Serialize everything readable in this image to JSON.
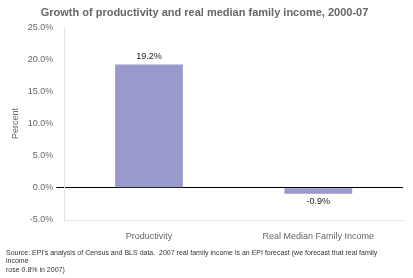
{
  "chart_data": {
    "type": "bar",
    "title": "Growth of productivity and real median family income, 2000-07",
    "categories": [
      "Productivity",
      "Real Median Family Income"
    ],
    "values": [
      19.2,
      -0.9
    ],
    "value_labels": [
      "19.2%",
      "-0.9%"
    ],
    "data_labels": true,
    "color": "#9999cc",
    "ylabel": "Percent",
    "ylim": [
      -5.0,
      25.0
    ],
    "yticks": [
      {
        "value": -5.0,
        "label": "-5.0%"
      },
      {
        "value": 0.0,
        "label": "0.0%"
      },
      {
        "value": 5.0,
        "label": "5.0%"
      },
      {
        "value": 10.0,
        "label": "10.0%"
      },
      {
        "value": 15.0,
        "label": "15.0%"
      },
      {
        "value": 20.0,
        "label": "20.0%"
      },
      {
        "value": 25.0,
        "label": "25.0%"
      }
    ],
    "grid": false,
    "annotations": [
      "Source: EPI's analysis of Census and BLS data.  2007 real family income is an EPI forecast (we forecast that real family income\nrose 0.8% in 2007)"
    ]
  }
}
